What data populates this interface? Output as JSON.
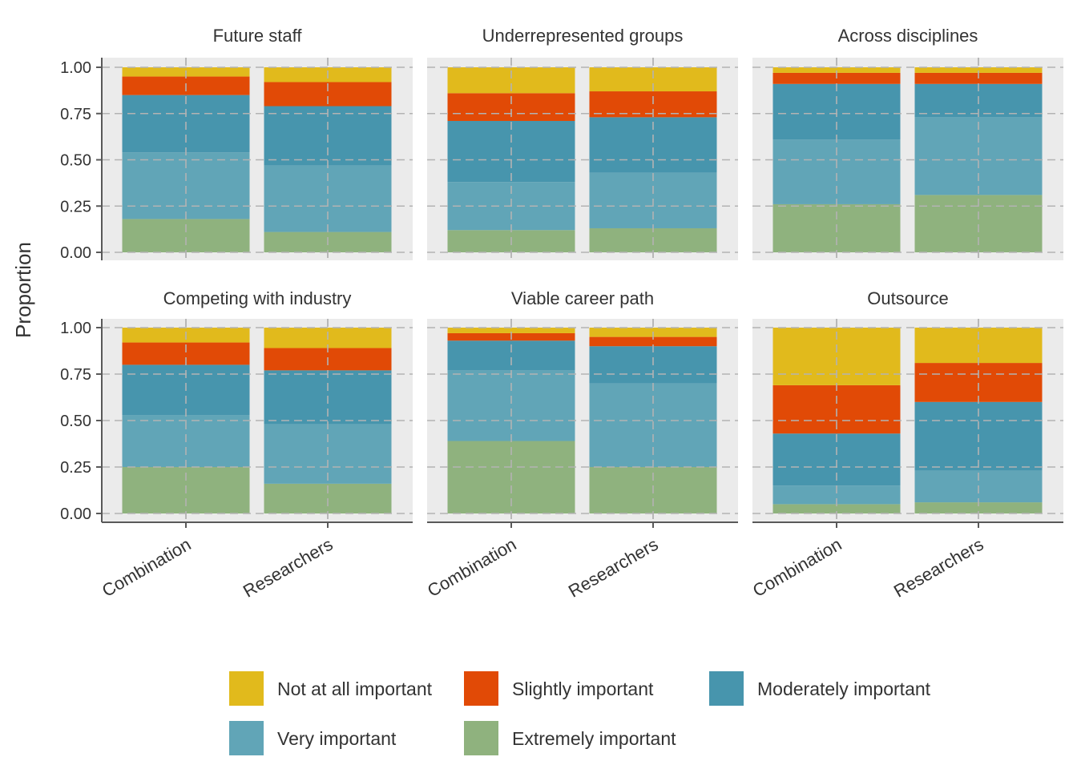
{
  "chart_data": {
    "type": "bar",
    "stacked": true,
    "facet": {
      "rows": 2,
      "cols": 3
    },
    "ylabel": "Proportion",
    "xlabel": "",
    "ylim": [
      0,
      1
    ],
    "yticks": [
      "0.00",
      "0.25",
      "0.50",
      "0.75",
      "1.00"
    ],
    "categories": [
      "Combination",
      "Researchers"
    ],
    "legend": {
      "position": "bottom",
      "items": [
        {
          "name": "Not at all important",
          "color": "#E1BA1C"
        },
        {
          "name": "Slightly important",
          "color": "#E14A06"
        },
        {
          "name": "Moderately important",
          "color": "#4795AD"
        },
        {
          "name": "Very important",
          "color": "#61A5B7"
        },
        {
          "name": "Extremely important",
          "color": "#8FB27E"
        }
      ]
    },
    "stack_order": [
      "Extremely important",
      "Very important",
      "Moderately important",
      "Slightly important",
      "Not at all important"
    ],
    "panels": [
      {
        "title": "Future staff",
        "bars": [
          {
            "category": "Combination",
            "values": {
              "Extremely important": 0.18,
              "Very important": 0.36,
              "Moderately important": 0.31,
              "Slightly important": 0.1,
              "Not at all important": 0.05
            }
          },
          {
            "category": "Researchers",
            "values": {
              "Extremely important": 0.11,
              "Very important": 0.36,
              "Moderately important": 0.32,
              "Slightly important": 0.13,
              "Not at all important": 0.08
            }
          }
        ]
      },
      {
        "title": "Underrepresented groups",
        "bars": [
          {
            "category": "Combination",
            "values": {
              "Extremely important": 0.12,
              "Very important": 0.26,
              "Moderately important": 0.33,
              "Slightly important": 0.15,
              "Not at all important": 0.14
            }
          },
          {
            "category": "Researchers",
            "values": {
              "Extremely important": 0.13,
              "Very important": 0.3,
              "Moderately important": 0.3,
              "Slightly important": 0.14,
              "Not at all important": 0.13
            }
          }
        ]
      },
      {
        "title": "Across disciplines",
        "bars": [
          {
            "category": "Combination",
            "values": {
              "Extremely important": 0.26,
              "Very important": 0.35,
              "Moderately important": 0.3,
              "Slightly important": 0.06,
              "Not at all important": 0.03
            }
          },
          {
            "category": "Researchers",
            "values": {
              "Extremely important": 0.31,
              "Very important": 0.42,
              "Moderately important": 0.18,
              "Slightly important": 0.06,
              "Not at all important": 0.03
            }
          }
        ]
      },
      {
        "title": "Competing with industry",
        "bars": [
          {
            "category": "Combination",
            "values": {
              "Extremely important": 0.25,
              "Very important": 0.28,
              "Moderately important": 0.27,
              "Slightly important": 0.12,
              "Not at all important": 0.08
            }
          },
          {
            "category": "Researchers",
            "values": {
              "Extremely important": 0.16,
              "Very important": 0.32,
              "Moderately important": 0.29,
              "Slightly important": 0.12,
              "Not at all important": 0.11
            }
          }
        ]
      },
      {
        "title": "Viable career path",
        "bars": [
          {
            "category": "Combination",
            "values": {
              "Extremely important": 0.39,
              "Very important": 0.38,
              "Moderately important": 0.16,
              "Slightly important": 0.04,
              "Not at all important": 0.03
            }
          },
          {
            "category": "Researchers",
            "values": {
              "Extremely important": 0.25,
              "Very important": 0.45,
              "Moderately important": 0.2,
              "Slightly important": 0.05,
              "Not at all important": 0.05
            }
          }
        ]
      },
      {
        "title": "Outsource",
        "bars": [
          {
            "category": "Combination",
            "values": {
              "Extremely important": 0.05,
              "Very important": 0.1,
              "Moderately important": 0.28,
              "Slightly important": 0.26,
              "Not at all important": 0.31
            }
          },
          {
            "category": "Researchers",
            "values": {
              "Extremely important": 0.06,
              "Very important": 0.17,
              "Moderately important": 0.37,
              "Slightly important": 0.21,
              "Not at all important": 0.19
            }
          }
        ]
      }
    ]
  }
}
